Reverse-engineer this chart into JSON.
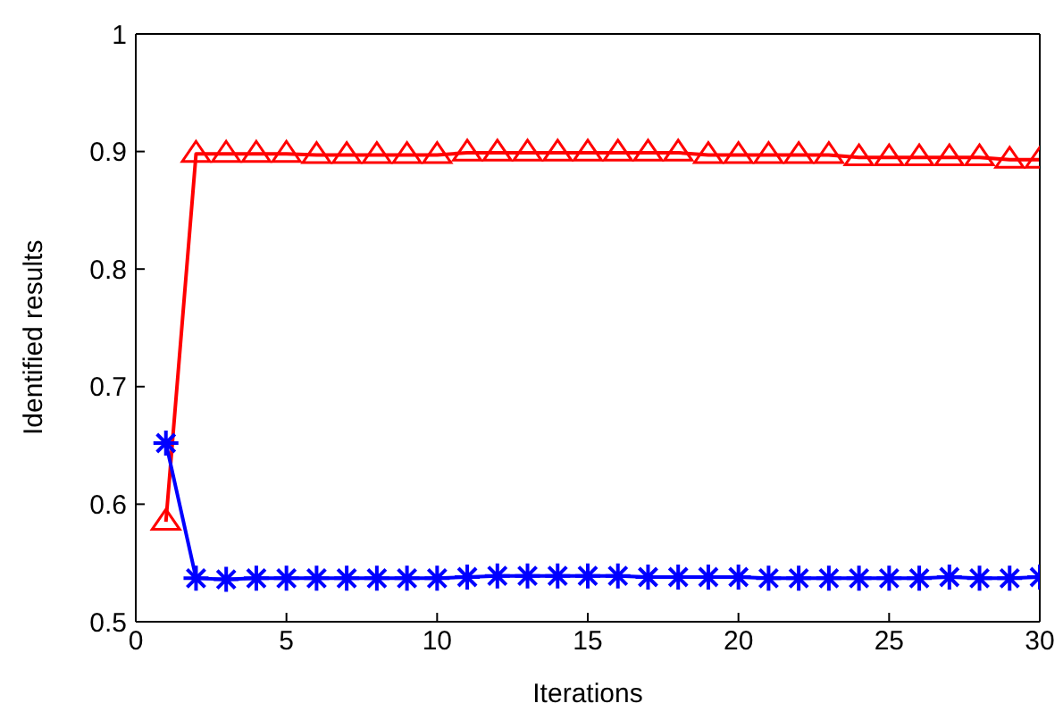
{
  "chart_data": {
    "type": "line",
    "xlabel": "Iterations",
    "ylabel": "Identified results",
    "x": [
      1,
      2,
      3,
      4,
      5,
      6,
      7,
      8,
      9,
      10,
      11,
      12,
      13,
      14,
      15,
      16,
      17,
      18,
      19,
      20,
      21,
      22,
      23,
      24,
      25,
      26,
      27,
      28,
      29,
      30
    ],
    "xlim": [
      0,
      30
    ],
    "xticks": [
      0,
      5,
      10,
      15,
      20,
      25,
      30
    ],
    "ylim": [
      0.5,
      1
    ],
    "yticks": [
      0.5,
      0.6,
      0.7,
      0.8,
      0.9,
      1
    ],
    "grid": false,
    "legend": false,
    "line_style": "solid",
    "series": [
      {
        "color": "#ff0000",
        "marker": "triangle",
        "values": [
          0.585,
          0.898,
          0.898,
          0.898,
          0.898,
          0.897,
          0.897,
          0.897,
          0.897,
          0.897,
          0.899,
          0.899,
          0.899,
          0.899,
          0.899,
          0.899,
          0.899,
          0.899,
          0.897,
          0.897,
          0.897,
          0.897,
          0.897,
          0.895,
          0.895,
          0.895,
          0.895,
          0.895,
          0.893,
          0.893
        ]
      },
      {
        "color": "#0000ff",
        "marker": "cross",
        "values": [
          0.652,
          0.537,
          0.536,
          0.537,
          0.537,
          0.537,
          0.537,
          0.537,
          0.537,
          0.537,
          0.538,
          0.539,
          0.539,
          0.539,
          0.539,
          0.539,
          0.538,
          0.538,
          0.538,
          0.538,
          0.537,
          0.537,
          0.537,
          0.537,
          0.537,
          0.537,
          0.538,
          0.537,
          0.537,
          0.538
        ]
      }
    ]
  }
}
